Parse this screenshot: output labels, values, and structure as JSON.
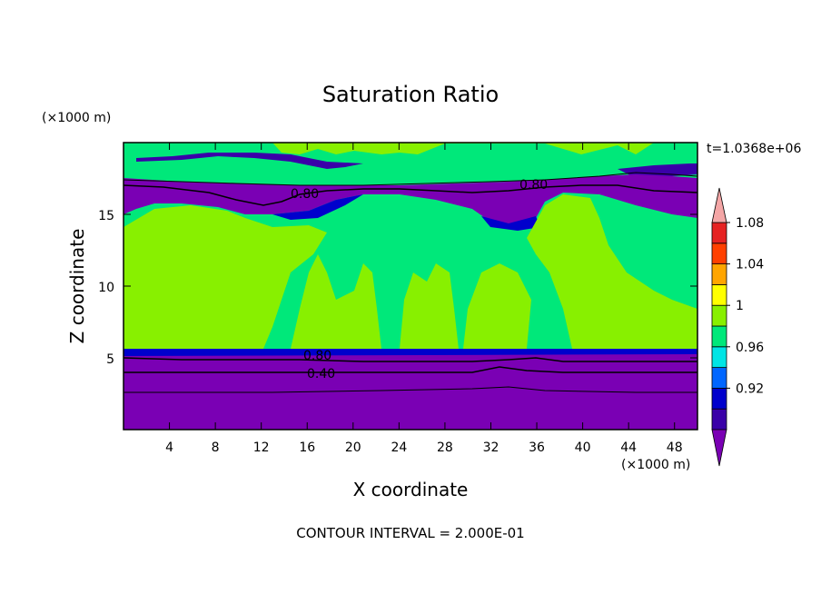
{
  "chart_data": {
    "type": "heatmap",
    "title": "Saturation Ratio",
    "xlabel": "X coordinate",
    "ylabel": "Z coordinate",
    "x_unit": "(×1000 m)",
    "y_unit": "(×1000 m)",
    "time_label": "t=1.0368e+06",
    "footer": "CONTOUR INTERVAL = 2.000E-01",
    "xlim": [
      0,
      50
    ],
    "ylim": [
      0,
      20
    ],
    "x_ticks": [
      4,
      8,
      12,
      16,
      20,
      24,
      28,
      32,
      36,
      40,
      44,
      48
    ],
    "y_ticks": [
      5,
      10,
      15
    ],
    "contour_labels": [
      "0.80",
      "0.80",
      "0.80",
      "0.40"
    ],
    "colorbar": {
      "levels": [
        0.92,
        0.96,
        1,
        1.04,
        1.08
      ],
      "level_labels": [
        "0.92",
        "0.96",
        "1",
        "1.04",
        "1.08"
      ],
      "colors": [
        "#7a00b4",
        "#3a00a8",
        "#0000cc",
        "#0066ff",
        "#00e5e5",
        "#00e87a",
        "#88f000",
        "#ffff00",
        "#ffa500",
        "#ff4000",
        "#e62222",
        "#f4a6a6"
      ]
    },
    "regions": [
      {
        "z_range": [
          0,
          5
        ],
        "value": "< 0.92"
      },
      {
        "z_range": [
          5,
          15
        ],
        "value": "0.98 - 1.02"
      },
      {
        "z_range": [
          15,
          18
        ],
        "value": "< 0.92"
      },
      {
        "z_range": [
          18,
          20
        ],
        "value": "0.98 - 1.02"
      }
    ]
  }
}
